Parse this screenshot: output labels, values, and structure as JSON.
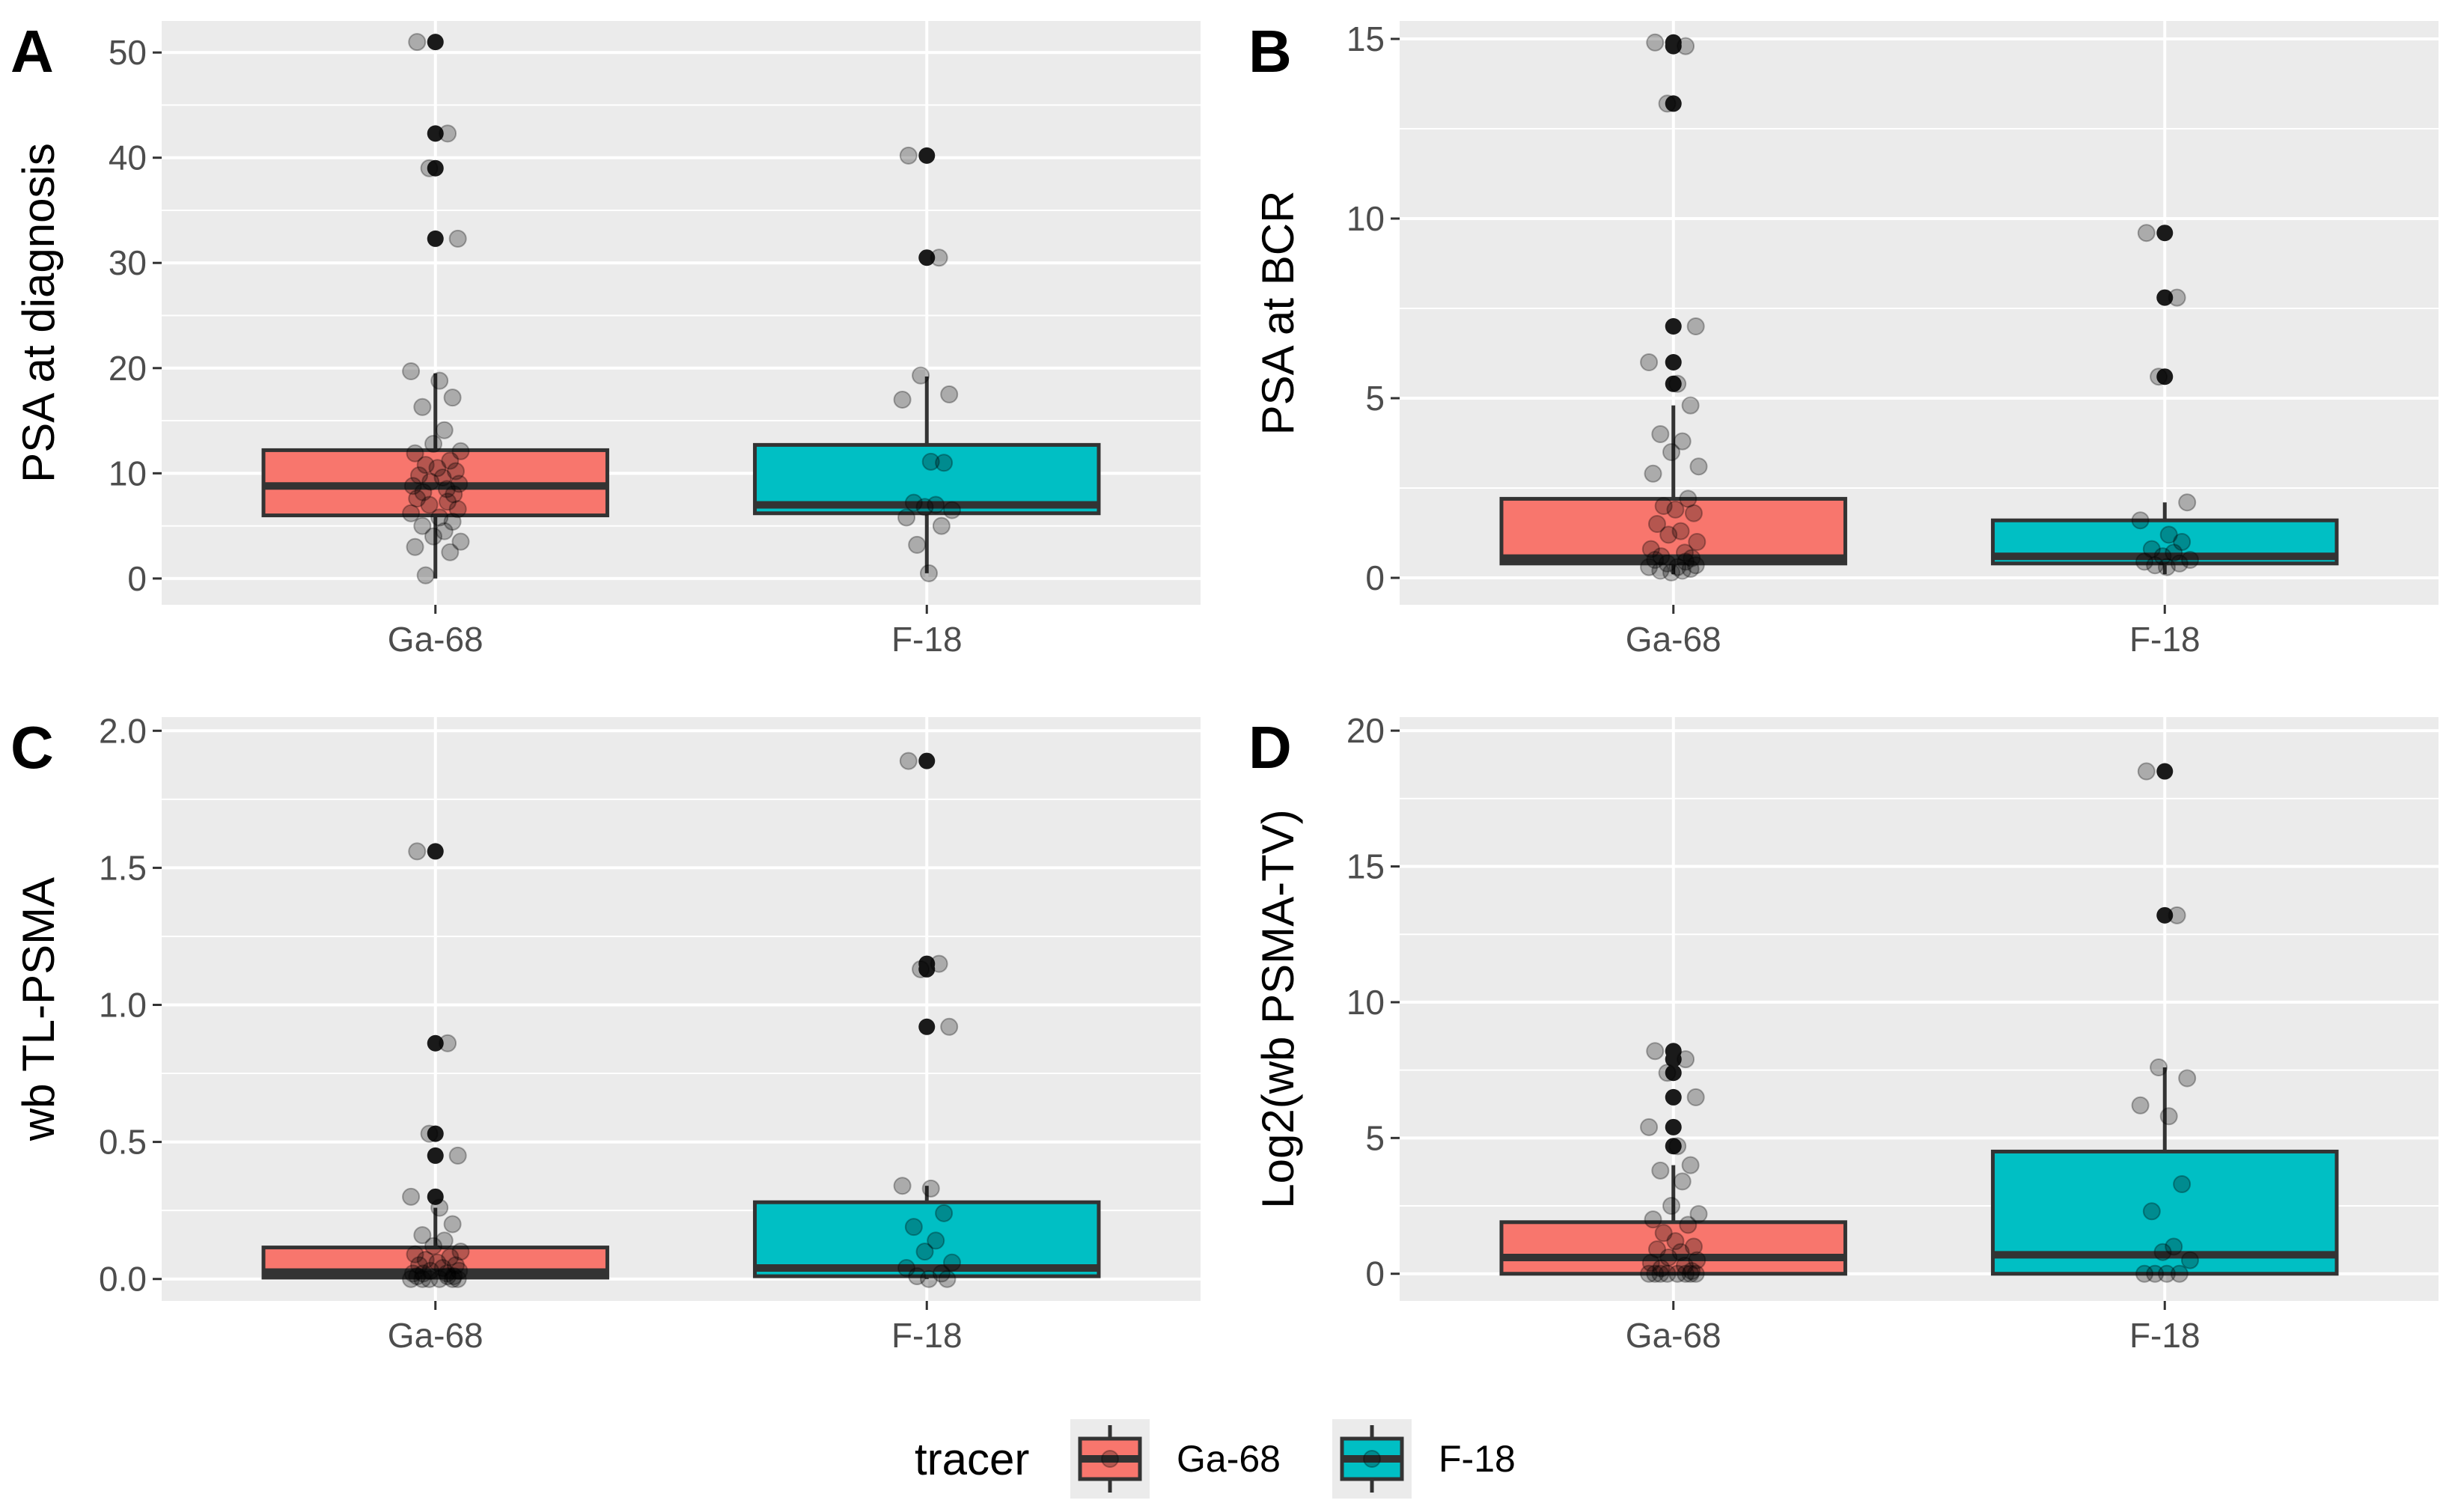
{
  "chart_data": [
    {
      "type": "box",
      "panel": "A",
      "ylabel": "PSA at diagnosis",
      "ylim": [
        -2.5,
        53
      ],
      "yticks": [
        0,
        10,
        20,
        30,
        40,
        50
      ],
      "ytick_labels": [
        "0",
        "10",
        "20",
        "30",
        "40",
        "50"
      ],
      "categories": [
        "Ga-68",
        "F-18"
      ],
      "boxes": [
        {
          "q1": 6,
          "median": 8.8,
          "q3": 12.2,
          "whisker_low": 0,
          "whisker_high": 19.5,
          "outliers": [
            32.3,
            39,
            42.3,
            51
          ]
        },
        {
          "q1": 6.2,
          "median": 7,
          "q3": 12.7,
          "whisker_low": 0.5,
          "whisker_high": 19.2,
          "outliers": [
            30.5,
            40.2
          ]
        }
      ],
      "points": [
        [
          51,
          42.3,
          39,
          32.3,
          19.7,
          18.8,
          17.2,
          16.3,
          14.1,
          12.8,
          12.1,
          11.9,
          11.2,
          10.8,
          10.5,
          10.2,
          9.8,
          9.6,
          9.2,
          9.0,
          8.8,
          8.5,
          8.2,
          8.0,
          7.6,
          7.3,
          7.0,
          6.6,
          6.2,
          5.8,
          5.4,
          5.0,
          4.5,
          4.0,
          3.5,
          3.0,
          2.5,
          0.3
        ],
        [
          40.2,
          30.5,
          19.3,
          17.5,
          17.0,
          11.1,
          11.0,
          7.2,
          7.0,
          6.8,
          6.5,
          5.8,
          5.0,
          3.2,
          0.5
        ]
      ]
    },
    {
      "type": "box",
      "panel": "B",
      "ylabel": "PSA at BCR",
      "ylim": [
        -0.75,
        15.5
      ],
      "yticks": [
        0,
        5,
        10,
        15
      ],
      "ytick_labels": [
        "0",
        "5",
        "10",
        "15"
      ],
      "categories": [
        "Ga-68",
        "F-18"
      ],
      "boxes": [
        {
          "q1": 0.4,
          "median": 0.55,
          "q3": 2.2,
          "whisker_low": 0.1,
          "whisker_high": 4.8,
          "outliers": [
            5.4,
            6.0,
            7.0,
            13.2,
            14.8,
            14.9
          ]
        },
        {
          "q1": 0.4,
          "median": 0.6,
          "q3": 1.6,
          "whisker_low": 0.1,
          "whisker_high": 2.1,
          "outliers": [
            5.6,
            7.8,
            9.6
          ]
        }
      ],
      "points": [
        [
          14.9,
          14.8,
          13.2,
          7.0,
          6.0,
          5.4,
          4.8,
          4.0,
          3.8,
          3.5,
          3.1,
          2.9,
          2.2,
          2.0,
          1.9,
          1.8,
          1.5,
          1.3,
          1.2,
          1.0,
          0.8,
          0.7,
          0.6,
          0.55,
          0.5,
          0.45,
          0.4,
          0.35,
          0.3,
          0.3,
          0.25,
          0.2,
          0.2,
          0.15
        ],
        [
          9.6,
          7.8,
          5.6,
          2.1,
          1.6,
          1.2,
          1.0,
          0.8,
          0.7,
          0.6,
          0.5,
          0.45,
          0.4,
          0.35,
          0.3
        ]
      ]
    },
    {
      "type": "box",
      "panel": "C",
      "ylabel": "wb TL-PSMA",
      "ylim": [
        -0.08,
        2.05
      ],
      "yticks": [
        0.0,
        0.5,
        1.0,
        1.5,
        2.0
      ],
      "ytick_labels": [
        "0.0",
        "0.5",
        "1.0",
        "1.5",
        "2.0"
      ],
      "categories": [
        "Ga-68",
        "F-18"
      ],
      "boxes": [
        {
          "q1": 0.005,
          "median": 0.025,
          "q3": 0.115,
          "whisker_low": 0,
          "whisker_high": 0.26,
          "outliers": [
            0.3,
            0.45,
            0.53,
            0.86,
            1.56
          ]
        },
        {
          "q1": 0.01,
          "median": 0.04,
          "q3": 0.28,
          "whisker_low": 0,
          "whisker_high": 0.34,
          "outliers": [
            0.92,
            1.13,
            1.15,
            1.89
          ]
        }
      ],
      "points": [
        [
          1.56,
          0.86,
          0.53,
          0.45,
          0.3,
          0.26,
          0.2,
          0.16,
          0.14,
          0.12,
          0.1,
          0.09,
          0.08,
          0.07,
          0.06,
          0.05,
          0.05,
          0.04,
          0.03,
          0.03,
          0.02,
          0.02,
          0.02,
          0.01,
          0.01,
          0.01,
          0.0,
          0.0,
          0.0,
          0.0,
          0.0,
          0.0
        ],
        [
          1.89,
          1.15,
          1.13,
          0.92,
          0.34,
          0.33,
          0.24,
          0.19,
          0.14,
          0.1,
          0.06,
          0.04,
          0.02,
          0.01,
          0.0,
          0.0
        ]
      ]
    },
    {
      "type": "box",
      "panel": "D",
      "ylabel": "Log2(wb PSMA-TV)",
      "ylim": [
        -1,
        20.5
      ],
      "yticks": [
        0,
        5,
        10,
        15,
        20
      ],
      "ytick_labels": [
        "0",
        "5",
        "10",
        "15",
        "20"
      ],
      "categories": [
        "Ga-68",
        "F-18"
      ],
      "boxes": [
        {
          "q1": 0,
          "median": 0.6,
          "q3": 1.9,
          "whisker_low": 0,
          "whisker_high": 4.0,
          "outliers": [
            4.7,
            5.4,
            6.5,
            7.4,
            7.9,
            8.2
          ]
        },
        {
          "q1": 0,
          "median": 0.7,
          "q3": 4.5,
          "whisker_low": 0,
          "whisker_high": 7.6,
          "outliers": [
            13.2,
            18.5
          ]
        }
      ],
      "points": [
        [
          8.2,
          7.9,
          7.4,
          6.5,
          5.4,
          4.7,
          4.0,
          3.8,
          3.4,
          2.5,
          2.2,
          2.0,
          1.8,
          1.5,
          1.2,
          1.0,
          0.9,
          0.8,
          0.6,
          0.5,
          0.4,
          0.3,
          0.2,
          0.1,
          0.0,
          0.0,
          0.0,
          0.0,
          0.0,
          0.0,
          0.0,
          0.0
        ],
        [
          18.5,
          13.2,
          7.6,
          7.2,
          6.2,
          5.8,
          3.3,
          2.3,
          1.0,
          0.8,
          0.5,
          0.0,
          0.0,
          0.0,
          0.0
        ]
      ]
    }
  ],
  "legend": {
    "title": "tracer",
    "items": [
      {
        "label": "Ga-68",
        "color": "#F8766D"
      },
      {
        "label": "F-18",
        "color": "#00BFC4"
      }
    ]
  },
  "colors": {
    "Ga-68": "#F8766D",
    "F-18": "#00BFC4"
  }
}
